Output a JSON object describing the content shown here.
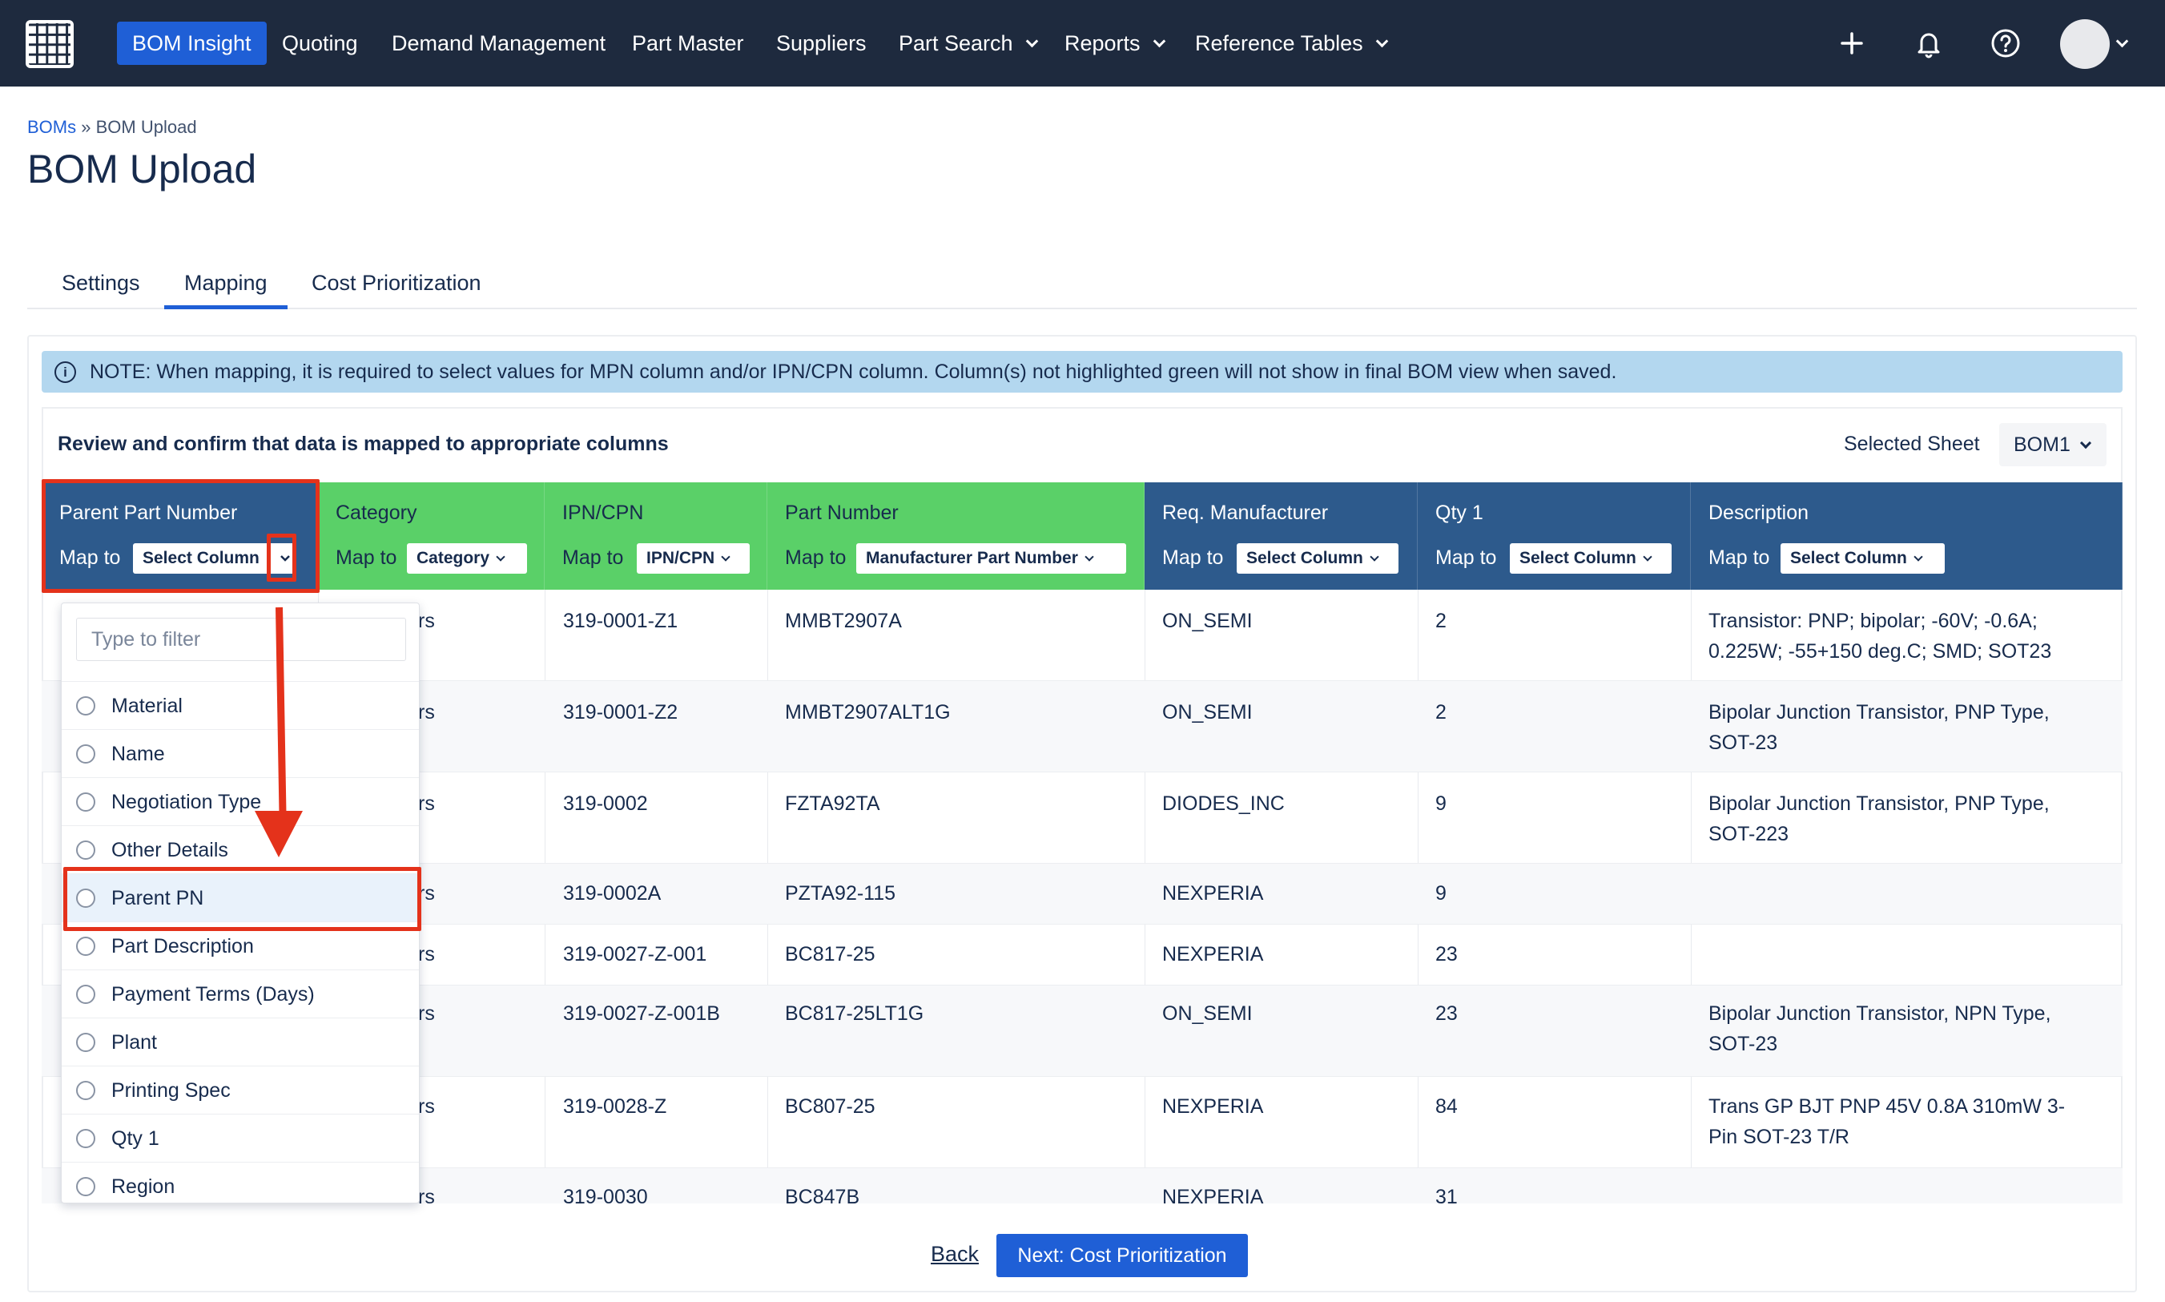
{
  "nav": {
    "items": [
      "BOM Insight",
      "Quoting",
      "Demand Management",
      "Part Master",
      "Suppliers",
      "Part Search",
      "Reports",
      "Reference Tables"
    ],
    "icons": [
      "plus-icon",
      "bell-icon",
      "help-icon"
    ]
  },
  "breadcrumb": {
    "parent": "BOMs",
    "separator": "»",
    "current": "BOM Upload"
  },
  "page": {
    "title": "BOM Upload"
  },
  "tabs": [
    "Settings",
    "Mapping",
    "Cost Prioritization"
  ],
  "note": {
    "text": "NOTE: When mapping, it is required to select values for MPN column and/or IPN/CPN column. Column(s) not highlighted green will not show in final BOM view when saved."
  },
  "review": {
    "title": "Review and confirm that data is mapped to appropriate columns",
    "sheet_label": "Selected Sheet",
    "sheet_value": "BOM1"
  },
  "map_to_label": "Map to",
  "columns": [
    {
      "title": "Parent Part Number",
      "select": "Select Column"
    },
    {
      "title": "Category",
      "select": "Category"
    },
    {
      "title": "IPN/CPN",
      "select": "IPN/CPN"
    },
    {
      "title": "Part Number",
      "select": "Manufacturer Part Number"
    },
    {
      "title": "Req. Manufacturer",
      "select": "Select Column"
    },
    {
      "title": "Qty 1",
      "select": "Select Column"
    },
    {
      "title": "Description",
      "select": "Select Column"
    }
  ],
  "rows": [
    {
      "category": "rs",
      "ipn": "319-0001-Z1",
      "mpn": "MMBT2907A",
      "mfr": "ON_SEMI",
      "qty": "2",
      "desc1": "Transistor: PNP; bipolar; -60V; -0.6A;",
      "desc2": "0.225W; -55+150 deg.C; SMD; SOT23"
    },
    {
      "category": "rs",
      "ipn": "319-0001-Z2",
      "mpn": "MMBT2907ALT1G",
      "mfr": "ON_SEMI",
      "qty": "2",
      "desc1": "Bipolar Junction Transistor, PNP Type,",
      "desc2": "SOT-23"
    },
    {
      "category": "rs",
      "ipn": "319-0002",
      "mpn": "FZTA92TA",
      "mfr": "DIODES_INC",
      "qty": "9",
      "desc1": "Bipolar Junction Transistor, PNP Type,",
      "desc2": "SOT-223"
    },
    {
      "category": "rs",
      "ipn": "319-0002A",
      "mpn": "PZTA92-115",
      "mfr": "NEXPERIA",
      "qty": "9",
      "desc1": "",
      "desc2": ""
    },
    {
      "category": "rs",
      "ipn": "319-0027-Z-001",
      "mpn": "BC817-25",
      "mfr": "NEXPERIA",
      "qty": "23",
      "desc1": "",
      "desc2": ""
    },
    {
      "category": "rs",
      "ipn": "319-0027-Z-001B",
      "mpn": "BC817-25LT1G",
      "mfr": "ON_SEMI",
      "qty": "23",
      "desc1": "Bipolar Junction Transistor, NPN Type,",
      "desc2": "SOT-23"
    },
    {
      "category": "rs",
      "ipn": "319-0028-Z",
      "mpn": "BC807-25",
      "mfr": "NEXPERIA",
      "qty": "84",
      "desc1": "Trans GP BJT PNP 45V 0.8A 310mW 3-",
      "desc2": "Pin SOT-23 T/R"
    },
    {
      "category": "rs",
      "ipn": "319-0030",
      "mpn": "BC847B",
      "mfr": "NEXPERIA",
      "qty": "31",
      "desc1": "",
      "desc2": ""
    }
  ],
  "dropdown": {
    "filter_placeholder": "Type to filter",
    "options": [
      "Material",
      "Name",
      "Negotiation Type",
      "Other Details",
      "Parent PN",
      "Part Description",
      "Payment Terms (Days)",
      "Plant",
      "Printing Spec",
      "Qty 1",
      "Region"
    ],
    "highlighted": "Parent PN"
  },
  "footer": {
    "back": "Back",
    "next": "Next: Cost Prioritization"
  },
  "colors": {
    "nav_bg": "#1e2a3e",
    "accent": "#1f5fd6",
    "mapped_green": "#5ad068",
    "unmapped_blue": "#2d5a8c",
    "annotation_red": "#e4321b"
  }
}
